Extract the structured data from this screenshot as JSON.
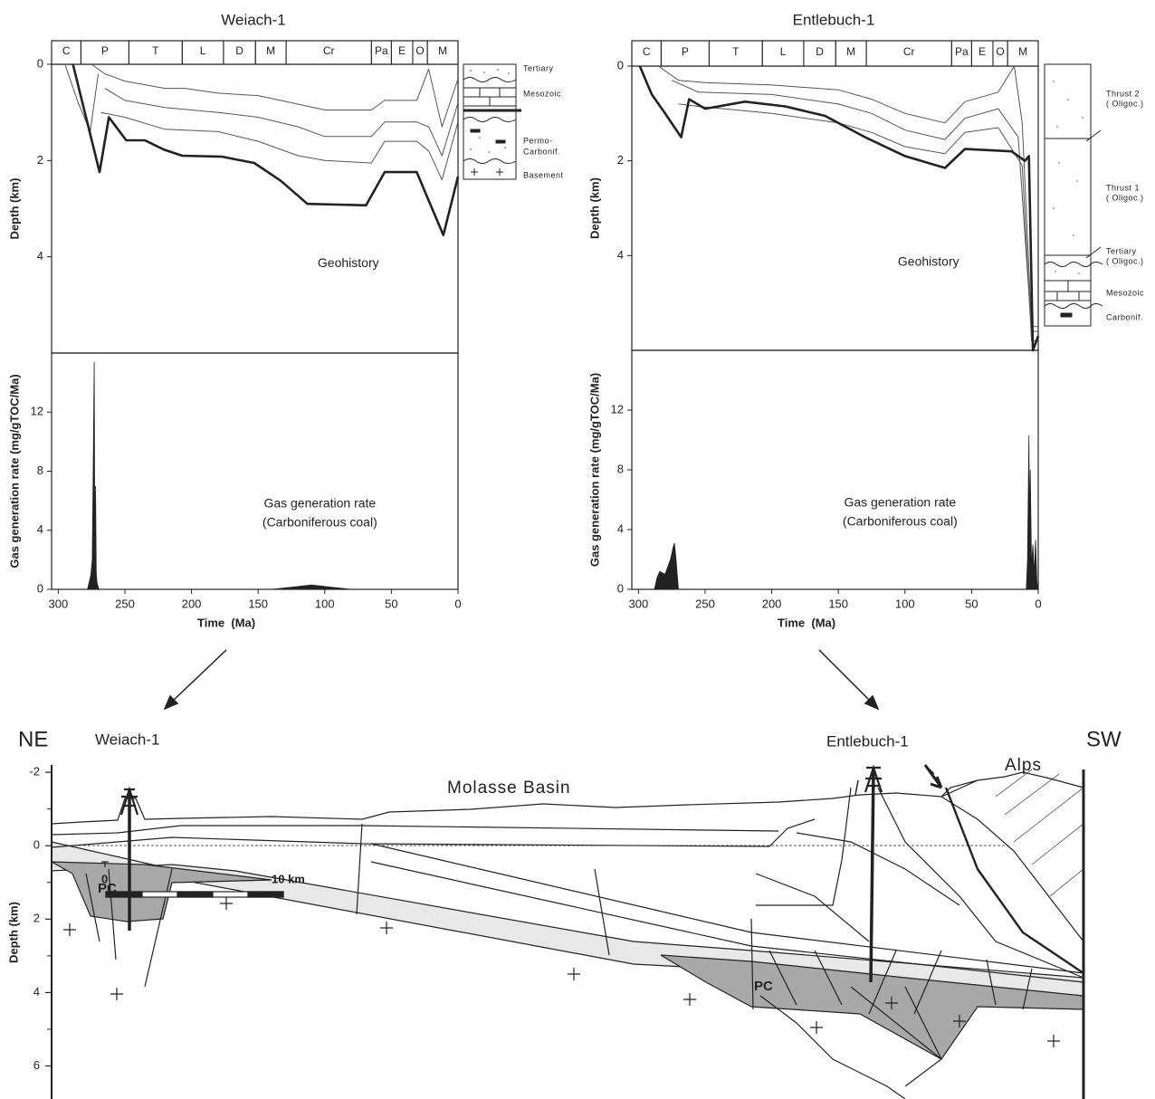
{
  "chart_data": [
    {
      "type": "line",
      "title": "Weiach-1",
      "label": "Geohistory",
      "y_label": "Depth (km)",
      "stage_labels": [
        "C",
        "P",
        "T",
        "L",
        "D",
        "M",
        "Cr",
        "Pa",
        "E",
        "O",
        "M"
      ],
      "stage_bounds": [
        305,
        283,
        247,
        207,
        176,
        152,
        129,
        65,
        50,
        34,
        23,
        0
      ],
      "xlim": [
        305,
        0
      ],
      "ylim": [
        0,
        6
      ],
      "y_inverted": true,
      "yticks": [
        0,
        2,
        4
      ],
      "series": [
        {
          "color": "#555",
          "line_width": 1,
          "x": [
            275,
            265,
            250,
            220,
            205,
            180,
            150,
            125,
            100,
            65,
            55,
            31,
            22,
            12,
            0
          ],
          "values": [
            0,
            0.2,
            0.35,
            0.5,
            0.5,
            0.6,
            0.65,
            0.8,
            0.95,
            0.95,
            0.75,
            0.75,
            0.1,
            1.3,
            0.3
          ]
        },
        {
          "color": "#555",
          "line_width": 1,
          "x": [
            265,
            250,
            220,
            180,
            150,
            120,
            100,
            65,
            55,
            31,
            22,
            12,
            0
          ],
          "values": [
            0.5,
            0.75,
            0.9,
            1.0,
            1.1,
            1.3,
            1.5,
            1.5,
            1.2,
            1.2,
            1.3,
            1.9,
            0.8
          ]
        },
        {
          "color": "#555",
          "line_width": 1,
          "x": [
            268,
            250,
            220,
            180,
            150,
            120,
            100,
            65,
            55,
            31,
            22,
            12,
            0
          ],
          "values": [
            1.0,
            1.1,
            1.35,
            1.4,
            1.6,
            1.9,
            2.0,
            2.05,
            1.6,
            1.6,
            1.8,
            2.4,
            1.2
          ]
        },
        {
          "color": "#555",
          "line_width": 1,
          "x": [
            295,
            285,
            276,
            270
          ],
          "values": [
            0,
            0.8,
            1.4,
            0.2
          ]
        },
        {
          "color": "#222",
          "line_width": 2.6,
          "x": [
            289,
            269,
            262,
            249,
            235,
            221,
            207,
            177,
            153,
            133,
            113,
            69,
            55,
            31,
            24,
            11,
            0
          ],
          "values": [
            0,
            2.24,
            1.1,
            1.58,
            1.58,
            1.77,
            1.9,
            1.92,
            2.05,
            2.42,
            2.9,
            2.93,
            2.24,
            2.24,
            2.7,
            3.55,
            2.33
          ]
        }
      ]
    },
    {
      "type": "area",
      "label": [
        "Gas generation rate",
        "(Carboniferous coal)"
      ],
      "y_label": "Gas generation rate (mg/gTOC/Ma)",
      "x_label": "Time  (Ma)",
      "xlim": [
        305,
        0
      ],
      "xticks": [
        300,
        250,
        200,
        150,
        100,
        50,
        0
      ],
      "ylim": [
        0,
        16
      ],
      "yticks": [
        0,
        4,
        8,
        12
      ],
      "series": [
        {
          "color": "#222",
          "x": [
            278,
            276.5,
            275.5,
            274.5,
            274,
            273.5,
            273,
            272.5,
            272,
            271.5,
            271,
            270.5,
            269.5,
            140,
            125,
            110,
            95,
            80
          ],
          "values": [
            0,
            0.6,
            1.0,
            2.0,
            6,
            11,
            15.4,
            2,
            7,
            1.2,
            0.5,
            0.3,
            0,
            0,
            0.15,
            0.3,
            0.15,
            0
          ]
        }
      ]
    },
    {
      "type": "line",
      "title": "Entlebuch-1",
      "label": "Geohistory",
      "y_label": "Depth (km)",
      "stage_labels": [
        "C",
        "P",
        "T",
        "L",
        "D",
        "M",
        "Cr",
        "Pa",
        "E",
        "O",
        "M"
      ],
      "stage_bounds": [
        305,
        283,
        247,
        207,
        176,
        152,
        129,
        65,
        50,
        34,
        23,
        0
      ],
      "xlim": [
        305,
        0
      ],
      "ylim": [
        0,
        6
      ],
      "y_inverted": true,
      "yticks": [
        0,
        2,
        4
      ],
      "series": [
        {
          "color": "#555",
          "line_width": 1,
          "x": [
            285,
            270,
            250,
            200,
            150,
            125,
            100,
            70,
            55,
            30,
            18,
            12,
            5,
            0
          ],
          "values": [
            0,
            0.3,
            0.35,
            0.4,
            0.5,
            0.7,
            1.0,
            1.2,
            0.75,
            0.55,
            0,
            1.2,
            5.5,
            5.5
          ]
        },
        {
          "color": "#555",
          "line_width": 1,
          "x": [
            275,
            255,
            200,
            150,
            125,
            100,
            70,
            55,
            30,
            15,
            5,
            0
          ],
          "values": [
            0.3,
            0.55,
            0.6,
            0.8,
            1.0,
            1.35,
            1.55,
            1.1,
            0.9,
            1.5,
            5.6,
            5.6
          ]
        },
        {
          "color": "#555",
          "line_width": 1,
          "x": [
            270,
            255,
            200,
            150,
            125,
            100,
            70,
            55,
            30,
            12,
            5,
            0
          ],
          "values": [
            0.8,
            0.85,
            1.0,
            1.2,
            1.4,
            1.7,
            1.85,
            1.4,
            1.3,
            2.1,
            5.8,
            5.8
          ]
        },
        {
          "color": "#222",
          "line_width": 2.6,
          "x": [
            299,
            290,
            280,
            268,
            262,
            250,
            220,
            190,
            160,
            130,
            100,
            70,
            55,
            20,
            10,
            7,
            4,
            0
          ],
          "values": [
            0,
            0.6,
            1.0,
            1.5,
            0.7,
            0.9,
            0.75,
            0.85,
            1.05,
            1.5,
            1.9,
            2.15,
            1.75,
            1.8,
            2.0,
            1.9,
            6.0,
            5.7
          ]
        }
      ]
    },
    {
      "type": "area",
      "label": [
        "Gas generation rate",
        "(Carboniferous coal)"
      ],
      "y_label": "Gas generation rate (mg/gTOC/Ma)",
      "x_label": "Time  (Ma)",
      "xlim": [
        305,
        0
      ],
      "xticks": [
        300,
        250,
        200,
        150,
        100,
        50,
        0
      ],
      "ylim": [
        0,
        16
      ],
      "yticks": [
        0,
        4,
        8,
        12
      ],
      "series": [
        {
          "color": "#222",
          "x": [
            288,
            286,
            284,
            280,
            278,
            276,
            274,
            273,
            272,
            270,
            9,
            8,
            7,
            6.5,
            6,
            5,
            4,
            3,
            2,
            1,
            0
          ],
          "values": [
            0,
            0.8,
            1.2,
            1.0,
            1.5,
            2.0,
            2.8,
            3.1,
            2.2,
            0,
            0,
            2,
            10.3,
            4,
            8,
            1.5,
            3,
            1,
            3.3,
            0.5,
            0
          ]
        }
      ]
    }
  ],
  "lithology": [
    {
      "labels": [
        [
          "Tertiary"
        ],
        [
          "Mesozoic"
        ],
        [
          "Permo-",
          "Carbonif."
        ],
        [
          "Basement"
        ]
      ]
    },
    {
      "labels": [
        [
          "Thrust 2",
          "( Oligoc.)"
        ],
        [
          "Thrust 1",
          "( Oligoc.)"
        ],
        [
          "Tertiary",
          "( Oligoc.)"
        ],
        [
          "Mesozoic"
        ],
        [
          "Carbonif."
        ]
      ]
    }
  ],
  "section": {
    "left_label": "NE",
    "right_label": "SW",
    "wells": [
      "Weiach-1",
      "Entlebuch-1"
    ],
    "basin": "Molasse Basin",
    "mountains": "Alps",
    "units": [
      "PC",
      "PC"
    ],
    "y_label": "Depth (km)",
    "ylim": [
      -2.2,
      6.9
    ],
    "yticks": [
      -2,
      0,
      2,
      4,
      6
    ],
    "scale": [
      "0",
      "10 km"
    ]
  }
}
